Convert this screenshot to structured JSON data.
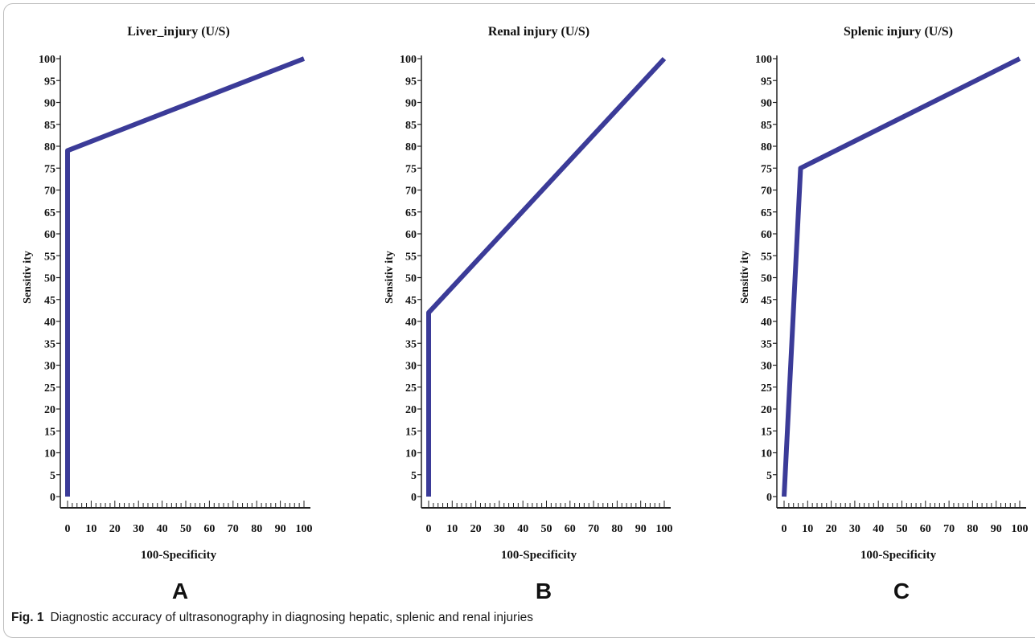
{
  "chart_data": [
    {
      "type": "line",
      "panel_label": "A",
      "title": "Liver_injury (U/S)",
      "xlabel": "100-Specificity",
      "ylabel": "Sensitiv ity",
      "xlim": [
        0,
        100
      ],
      "ylim": [
        0,
        100
      ],
      "x_ticks": [
        0,
        10,
        20,
        30,
        40,
        50,
        60,
        70,
        80,
        90,
        100
      ],
      "y_ticks": [
        0,
        5,
        10,
        15,
        20,
        25,
        30,
        35,
        40,
        45,
        50,
        55,
        60,
        65,
        70,
        75,
        80,
        85,
        90,
        95,
        100
      ],
      "series": [
        {
          "color": "#3b3b98",
          "x": [
            0,
            0,
            100
          ],
          "y": [
            0,
            79,
            100
          ]
        }
      ]
    },
    {
      "type": "line",
      "panel_label": "B",
      "title": "Renal injury (U/S)",
      "xlabel": "100-Specificity",
      "ylabel": "Sensitiv ity",
      "xlim": [
        0,
        100
      ],
      "ylim": [
        0,
        100
      ],
      "x_ticks": [
        0,
        10,
        20,
        30,
        40,
        50,
        60,
        70,
        80,
        90,
        100
      ],
      "y_ticks": [
        0,
        5,
        10,
        15,
        20,
        25,
        30,
        35,
        40,
        45,
        50,
        55,
        60,
        65,
        70,
        75,
        80,
        85,
        90,
        95,
        100
      ],
      "series": [
        {
          "color": "#3b3b98",
          "x": [
            0,
            0,
            100
          ],
          "y": [
            0,
            42,
            100
          ]
        }
      ]
    },
    {
      "type": "line",
      "panel_label": "C",
      "title": "Splenic injury (U/S)",
      "xlabel": "100-Specificity",
      "ylabel": "Sensitiv ity",
      "xlim": [
        0,
        100
      ],
      "ylim": [
        0,
        100
      ],
      "x_ticks": [
        0,
        10,
        20,
        30,
        40,
        50,
        60,
        70,
        80,
        90,
        100
      ],
      "y_ticks": [
        0,
        5,
        10,
        15,
        20,
        25,
        30,
        35,
        40,
        45,
        50,
        55,
        60,
        65,
        70,
        75,
        80,
        85,
        90,
        95,
        100
      ],
      "series": [
        {
          "color": "#3b3b98",
          "x": [
            0,
            7,
            100
          ],
          "y": [
            0,
            75,
            100
          ]
        }
      ]
    }
  ],
  "caption": {
    "label": "Fig. 1",
    "text": "Diagnostic accuracy of ultrasonography in diagnosing hepatic, splenic and renal injuries"
  }
}
